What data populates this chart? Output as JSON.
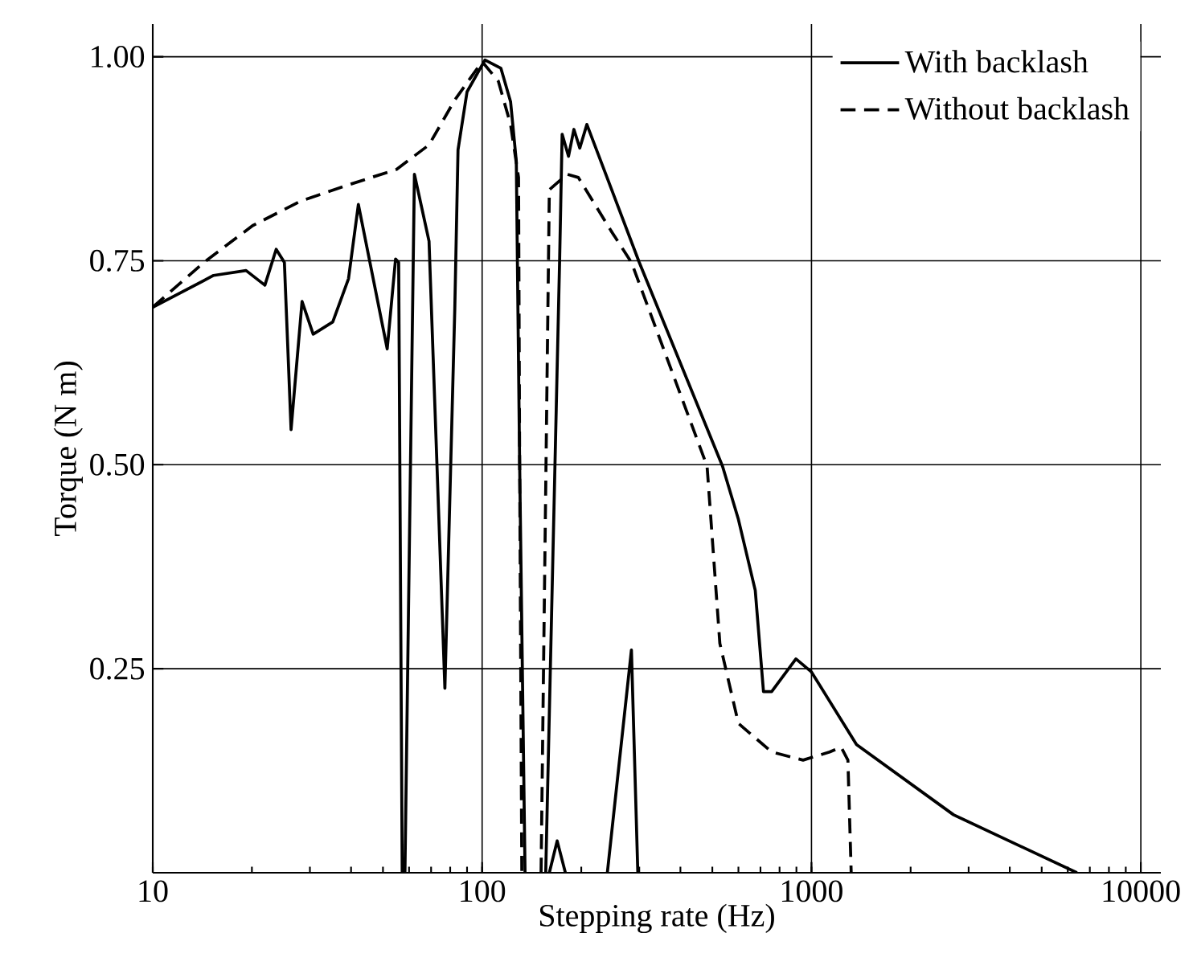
{
  "chart_data": {
    "type": "line",
    "xlabel": "Stepping rate (Hz)",
    "ylabel": "Torque (N m)",
    "log": "x",
    "grid": true,
    "legend": "top right",
    "marker": "none",
    "xlim": [
      10,
      11500
    ],
    "xticks": [
      10,
      100,
      1000,
      10000
    ],
    "ylim": [
      0,
      1.04
    ],
    "yticks": [
      {
        "value": 0.25,
        "label": "0.25"
      },
      {
        "value": 0.5,
        "label": "0.50"
      },
      {
        "value": 0.75,
        "label": "0.75"
      },
      {
        "value": 1.0,
        "label": "1.00"
      }
    ],
    "series": [
      {
        "name": "With backlash",
        "color": "#000000",
        "line_style": "solid",
        "x": [
          10,
          15.3,
          19.2,
          21.9,
          23.7,
          25.1,
          26.3,
          28.4,
          30.7,
          35.2,
          39.3,
          42.1,
          51.5,
          54.6,
          55.8,
          57.2,
          58.3,
          62.3,
          69,
          77.1,
          82.6,
          84.5,
          90,
          102,
          114,
          122,
          127,
          130,
          135,
          null,
          156,
          172,
          175,
          183,
          190,
          198,
          208,
          300,
          537,
          600,
          675,
          715,
          757,
          897,
          1000,
          1370,
          2700,
          6400,
          null,
          160,
          169,
          179,
          null,
          240,
          284,
          297
        ],
        "values": [
          0.693,
          0.732,
          0.738,
          0.72,
          0.764,
          0.748,
          0.543,
          0.7,
          0.66,
          0.675,
          0.728,
          0.819,
          0.642,
          0.752,
          0.748,
          0,
          0,
          0.856,
          0.774,
          0.226,
          0.69,
          0.886,
          0.957,
          0.996,
          0.986,
          0.945,
          0.872,
          0.5,
          0,
          null,
          0,
          0.754,
          0.905,
          0.878,
          0.911,
          0.888,
          0.917,
          0.748,
          0.498,
          0.433,
          0.346,
          0.222,
          0.222,
          0.262,
          0.246,
          0.157,
          0.071,
          0,
          null,
          0,
          0.039,
          0,
          null,
          0,
          0.273,
          0
        ]
      },
      {
        "name": "Without backlash",
        "color": "#000000",
        "line_style": "dashed",
        "x": [
          10,
          14.3,
          20.1,
          28.1,
          39.3,
          55,
          69,
          82.6,
          100,
          112,
          122,
          129,
          130,
          132,
          null,
          151,
          160,
          181,
          196,
          246,
          284,
          482,
          527,
          600,
          757,
          943,
          1135,
          1230,
          1290,
          1320
        ],
        "values": [
          0.693,
          0.748,
          0.793,
          0.823,
          0.843,
          0.862,
          0.892,
          0.947,
          0.994,
          0.97,
          0.917,
          0.852,
          0.5,
          0,
          null,
          0,
          0.837,
          0.856,
          0.852,
          0.787,
          0.748,
          0.498,
          0.281,
          0.183,
          0.148,
          0.138,
          0.148,
          0.154,
          0.138,
          0
        ]
      }
    ]
  }
}
